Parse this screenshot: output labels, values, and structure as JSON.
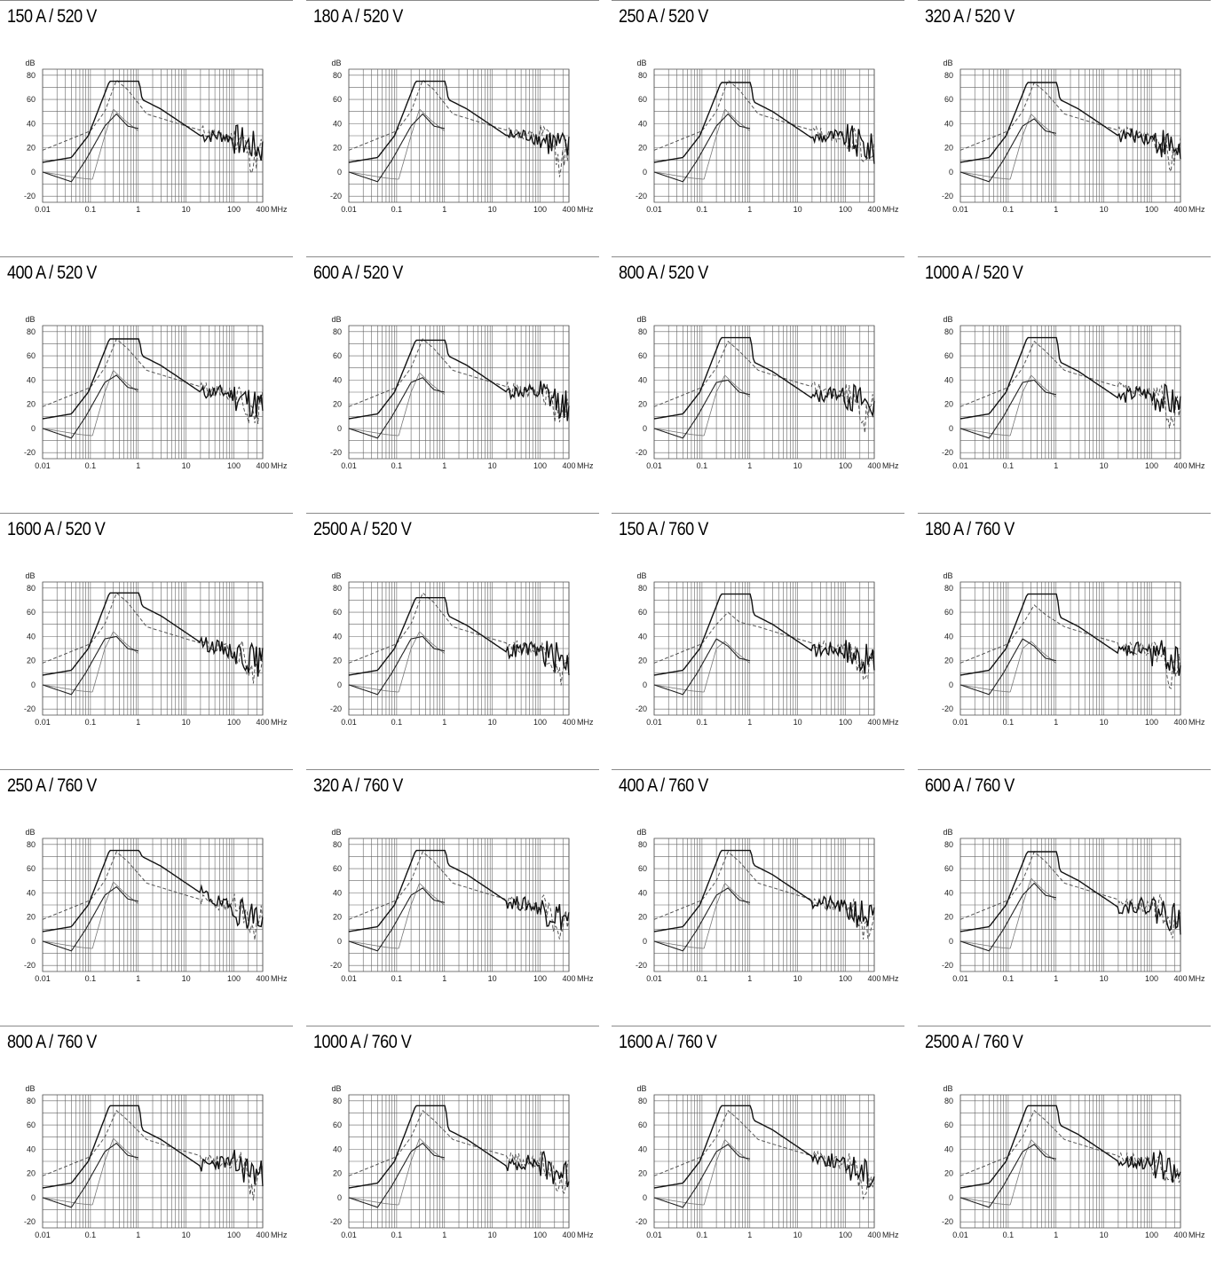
{
  "chart_data": {
    "type": "line",
    "layout": "grid-5x4",
    "shared_axes": {
      "xscale": "log",
      "xlim": [
        0.01,
        400
      ],
      "xticks": [
        0.01,
        0.1,
        1,
        10,
        100,
        400
      ],
      "xtick_labels": [
        "0.01",
        "0.1",
        "1",
        "10",
        "100",
        "400"
      ],
      "xunit": "MHz",
      "ylim": [
        -25,
        85
      ],
      "yticks": [
        -20,
        0,
        20,
        40,
        60,
        80
      ],
      "ytick_labels": [
        "-20",
        "0",
        "20",
        "40",
        "60",
        "80"
      ],
      "yunit": "dB",
      "grid": true
    },
    "panels": [
      {
        "title": "150 A / 520 V",
        "p": [
          75,
          76,
          60,
          38
        ]
      },
      {
        "title": "180 A / 520 V",
        "p": [
          75,
          76,
          60,
          38
        ]
      },
      {
        "title": "250 A / 520 V",
        "p": [
          74,
          76,
          58,
          38
        ]
      },
      {
        "title": "320 A / 520 V",
        "p": [
          74,
          74,
          60,
          34
        ]
      },
      {
        "title": "400 A / 520 V",
        "p": [
          74,
          74,
          60,
          34
        ]
      },
      {
        "title": "600 A / 520 V",
        "p": [
          73,
          74,
          60,
          32
        ]
      },
      {
        "title": "800 A / 520 V",
        "p": [
          75,
          72,
          55,
          30
        ]
      },
      {
        "title": "1000 A / 520 V",
        "p": [
          75,
          72,
          55,
          30
        ]
      },
      {
        "title": "1600 A / 520 V",
        "p": [
          76,
          76,
          65,
          30
        ]
      },
      {
        "title": "2500 A / 520 V",
        "p": [
          72,
          76,
          57,
          30
        ]
      },
      {
        "title": "150 A / 760 V",
        "p": [
          75,
          60,
          58,
          22
        ]
      },
      {
        "title": "180 A / 760 V",
        "p": [
          75,
          66,
          56,
          22
        ]
      },
      {
        "title": "250 A / 760 V",
        "p": [
          75,
          74,
          70,
          35
        ]
      },
      {
        "title": "320 A / 760 V",
        "p": [
          75,
          74,
          63,
          34
        ]
      },
      {
        "title": "400 A / 760 V",
        "p": [
          75,
          74,
          63,
          34
        ]
      },
      {
        "title": "600 A / 760 V",
        "p": [
          74,
          74,
          58,
          38
        ]
      },
      {
        "title": "800 A / 760 V",
        "p": [
          76,
          72,
          56,
          35
        ]
      },
      {
        "title": "1000 A / 760 V",
        "p": [
          76,
          72,
          56,
          35
        ]
      },
      {
        "title": "1600 A / 760 V",
        "p": [
          76,
          72,
          64,
          34
        ]
      },
      {
        "title": "2500 A / 760 V",
        "p": [
          76,
          72,
          60,
          34
        ]
      }
    ],
    "colors": {
      "line_dark": "#111111",
      "line_mid": "#555555",
      "grid": "#666666"
    }
  }
}
